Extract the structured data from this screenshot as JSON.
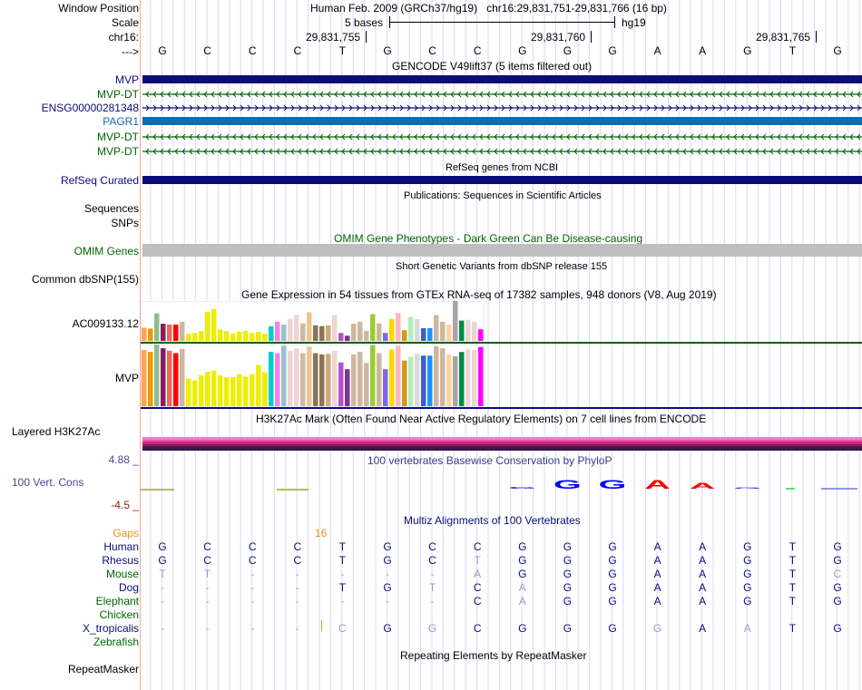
{
  "header": {
    "window_position_label": "Window Position",
    "scale_label": "Scale",
    "chrom_label": "chr16:",
    "strand_label": "--->",
    "assembly_title": "Human Feb. 2009 (GRCh37/hg19)   chr16:29,831,751-29,831,766 (16 bp)",
    "scale_text": "5 bases",
    "scale_db": "hg19",
    "ticks": [
      "29,831,755",
      "29,831,760",
      "29,831,765"
    ],
    "bases": [
      "G",
      "C",
      "C",
      "C",
      "T",
      "G",
      "C",
      "C",
      "G",
      "G",
      "G",
      "A",
      "A",
      "G",
      "T",
      "G"
    ]
  },
  "gencode": {
    "title": "GENCODE V49lift37 (5 items filtered out)",
    "tracks": [
      {
        "name": "MVP",
        "color": "#0c0c78",
        "style": "block"
      },
      {
        "name": "MVP-DT",
        "color": "#006400",
        "style": "minus"
      },
      {
        "name": "ENSG00000281348",
        "color": "#0c0c78",
        "style": "plus"
      },
      {
        "name": "PAGR1",
        "color": "#0c6eb0",
        "style": "block"
      },
      {
        "name": "MVP-DT",
        "color": "#006400",
        "style": "minus"
      },
      {
        "name": "MVP-DT",
        "color": "#006400",
        "style": "minus"
      }
    ]
  },
  "refseq": {
    "title": "RefSeq genes from NCBI",
    "label": "RefSeq Curated",
    "color": "#0c0c78"
  },
  "publications": {
    "title": "Publications: Sequences in Scientific Articles",
    "labels": [
      "Sequences",
      "SNPs"
    ]
  },
  "omim": {
    "title": "OMIM Gene Phenotypes - Dark Green Can Be Disease-causing",
    "label": "OMIM Genes",
    "color": "#bebebe"
  },
  "dbsnp": {
    "title": "Short Genetic Variants from dbSNP release 155",
    "label": "Common dbSNP(155)"
  },
  "gtex": {
    "title": "Gene Expression in 54 tissues from GTEx RNA-seq of 17382 samples, 948 donors (V8, Aug 2019)",
    "colors": [
      "#ffa54f",
      "#ee9a00",
      "#8fbc8f",
      "#8b1c62",
      "#ee6a50",
      "#ff0000",
      "#cdb79e",
      "#eeee00",
      "#eeee00",
      "#eeee00",
      "#eeee00",
      "#eeee00",
      "#eeee00",
      "#eeee00",
      "#eeee00",
      "#eeee00",
      "#eeee00",
      "#eeee00",
      "#eeee00",
      "#eeee00",
      "#00cdcd",
      "#ee82ee",
      "#9ac0cd",
      "#eed5d2",
      "#eed5d2",
      "#cdb79e",
      "#eec591",
      "#8b7355",
      "#8b7355",
      "#cdaa7d",
      "#eed5d2",
      "#b452cd",
      "#7a378b",
      "#cdb79e",
      "#cdb79e",
      "#cdb79e",
      "#9acd32",
      "#cdb79e",
      "#7b68ee",
      "#ffd700",
      "#ffb6c1",
      "#cd9b1d",
      "#b4eeb4",
      "#d9d9d9",
      "#3a5fcd",
      "#1e90ff",
      "#cdb79e",
      "#cdb79e",
      "#ffd39b",
      "#a6a6a6",
      "#008b45",
      "#eed5d2",
      "#eed5d2",
      "#ff00ff"
    ],
    "genes": [
      {
        "name": "AC009133.12",
        "line_color": "#006400",
        "values": [
          0.33,
          0.31,
          0.69,
          0.43,
          0.41,
          0.41,
          0.48,
          0.18,
          0.2,
          0.25,
          0.73,
          0.8,
          0.29,
          0.25,
          0.18,
          0.23,
          0.25,
          0.2,
          0.23,
          0.18,
          0.37,
          0.48,
          0.41,
          0.55,
          0.65,
          0.44,
          0.72,
          0.39,
          0.37,
          0.39,
          0.65,
          0.2,
          0.13,
          0.43,
          0.48,
          0.25,
          0.67,
          0.44,
          0.2,
          0.55,
          0.7,
          0.27,
          0.6,
          0.55,
          0.32,
          0.32,
          0.65,
          0.48,
          0.41,
          1.0,
          0.51,
          0.53,
          0.48,
          0.29
        ]
      },
      {
        "name": "MVP",
        "line_color": "#0c0c78",
        "values": [
          0.91,
          0.88,
          1.0,
          0.94,
          0.9,
          0.86,
          0.93,
          0.45,
          0.42,
          0.5,
          0.56,
          0.58,
          0.5,
          0.47,
          0.47,
          0.52,
          0.48,
          0.52,
          0.67,
          0.55,
          0.88,
          0.86,
          0.98,
          0.9,
          0.94,
          0.86,
          0.97,
          0.86,
          0.84,
          0.85,
          0.9,
          0.71,
          0.6,
          0.84,
          0.88,
          0.7,
          0.99,
          0.86,
          0.6,
          0.92,
          0.98,
          0.74,
          0.8,
          0.85,
          0.82,
          0.82,
          0.97,
          0.94,
          0.84,
          0.81,
          0.88,
          0.92,
          0.91,
          0.96
        ]
      }
    ]
  },
  "h3k27ac": {
    "title": "H3K27Ac Mark (Often Found Near Active Regulatory Elements) on 7 cell lines from ENCODE",
    "label": "Layered H3K27Ac",
    "layers": [
      "#f07ad0",
      "#e75ab5",
      "#c8287a",
      "#8a1a55",
      "#4a1850",
      "#2a1545"
    ]
  },
  "conservation": {
    "title": "100 vertebrates Basewise Conservation by PhyloP",
    "label": "100 Vert. Cons",
    "max_label": "4.88 _",
    "min_label": "-4.5 _",
    "logo": [
      {
        "base": "G",
        "color": "#0000ff",
        "score": 0.2
      },
      {
        "base": "G",
        "color": "#0000ff",
        "score": 1.0
      },
      {
        "base": "G",
        "color": "#0000ff",
        "score": 1.0
      },
      {
        "base": "A",
        "color": "#ff0000",
        "score": 1.0
      },
      {
        "base": "A",
        "color": "#ff0000",
        "score": 0.7
      },
      {
        "base": "G",
        "color": "#0000ff",
        "score": 0.15
      }
    ]
  },
  "multiz": {
    "title": "Multiz Alignments of 100 Vertebrates",
    "gaps_label": "Gaps",
    "gap_count": "16",
    "species": [
      {
        "name": "Human",
        "color": "#0c0c78",
        "seq": [
          "G",
          "C",
          "C",
          "C",
          "T",
          "G",
          "C",
          "C",
          "G",
          "G",
          "G",
          "A",
          "A",
          "G",
          "T",
          "G"
        ],
        "faded": []
      },
      {
        "name": "Rhesus",
        "color": "#0c0c78",
        "seq": [
          "G",
          "C",
          "C",
          "C",
          "T",
          "G",
          "C",
          "T",
          "G",
          "G",
          "G",
          "A",
          "A",
          "G",
          "T",
          "G"
        ],
        "faded": [
          7
        ]
      },
      {
        "name": "Mouse",
        "color": "#006400",
        "seq": [
          "T",
          "T",
          "-",
          "-",
          "-",
          "-",
          "-",
          "A",
          "G",
          "G",
          "G",
          "A",
          "A",
          "G",
          "T",
          "C"
        ],
        "faded": [
          0,
          1,
          2,
          3,
          4,
          5,
          6,
          7,
          15
        ]
      },
      {
        "name": "Dog",
        "color": "#0c0c78",
        "seq": [
          "-",
          "-",
          "-",
          "-",
          "T",
          "G",
          "T",
          "C",
          "A",
          "G",
          "G",
          "A",
          "A",
          "G",
          "T",
          "G"
        ],
        "faded": [
          0,
          1,
          2,
          3,
          6,
          8
        ]
      },
      {
        "name": "Elephant",
        "color": "#006400",
        "seq": [
          "-",
          "-",
          "-",
          "-",
          "-",
          "-",
          "-",
          "C",
          "A",
          "G",
          "G",
          "A",
          "A",
          "G",
          "T",
          "G"
        ],
        "faded": [
          0,
          1,
          2,
          3,
          4,
          5,
          6,
          8
        ]
      },
      {
        "name": "Chicken",
        "color": "#006400",
        "seq": [],
        "faded": []
      },
      {
        "name": "X_tropicalis",
        "color": "#0c0c78",
        "seq": [
          "-",
          "-",
          "-",
          "-",
          "C",
          "G",
          "G",
          "C",
          "G",
          "G",
          "G",
          "G",
          "A",
          "A",
          "T",
          "G"
        ],
        "faded": [
          0,
          1,
          2,
          3,
          4,
          6,
          11,
          13
        ]
      },
      {
        "name": "Zebrafish",
        "color": "#006400",
        "seq": [],
        "faded": []
      }
    ]
  },
  "repeatmasker": {
    "title": "Repeating Elements by RepeatMasker",
    "label": "RepeatMasker"
  }
}
